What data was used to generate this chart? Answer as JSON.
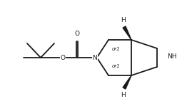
{
  "bg_color": "#ffffff",
  "line_color": "#1a1a1a",
  "line_width": 1.3,
  "text_color": "#1a1a1a",
  "font_size": 6.5,
  "small_font_size": 5.0,
  "figsize": [
    2.69,
    1.56
  ],
  "dpi": 100,
  "xlim": [
    0,
    269
  ],
  "ylim": [
    0,
    156
  ]
}
